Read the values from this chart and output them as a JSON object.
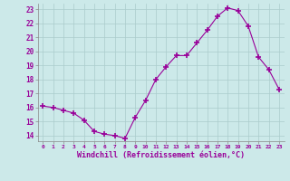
{
  "x": [
    0,
    1,
    2,
    3,
    4,
    5,
    6,
    7,
    8,
    9,
    10,
    11,
    12,
    13,
    14,
    15,
    16,
    17,
    18,
    19,
    20,
    21,
    22,
    23
  ],
  "y": [
    16.1,
    16.0,
    15.8,
    15.6,
    15.1,
    14.3,
    14.1,
    14.0,
    13.8,
    15.3,
    16.5,
    18.0,
    18.9,
    19.7,
    19.7,
    20.6,
    21.5,
    22.5,
    23.1,
    22.9,
    21.8,
    19.6,
    18.7,
    17.3
  ],
  "xlabel": "Windchill (Refroidissement éolien,°C)",
  "ylim": [
    13.6,
    23.4
  ],
  "xlim": [
    -0.5,
    23.5
  ],
  "yticks": [
    14,
    15,
    16,
    17,
    18,
    19,
    20,
    21,
    22,
    23
  ],
  "xticks": [
    0,
    1,
    2,
    3,
    4,
    5,
    6,
    7,
    8,
    9,
    10,
    11,
    12,
    13,
    14,
    15,
    16,
    17,
    18,
    19,
    20,
    21,
    22,
    23
  ],
  "line_color": "#990099",
  "marker": "+",
  "background_color": "#cce9e9",
  "grid_color": "#aacccc",
  "spine_color": "#888888"
}
